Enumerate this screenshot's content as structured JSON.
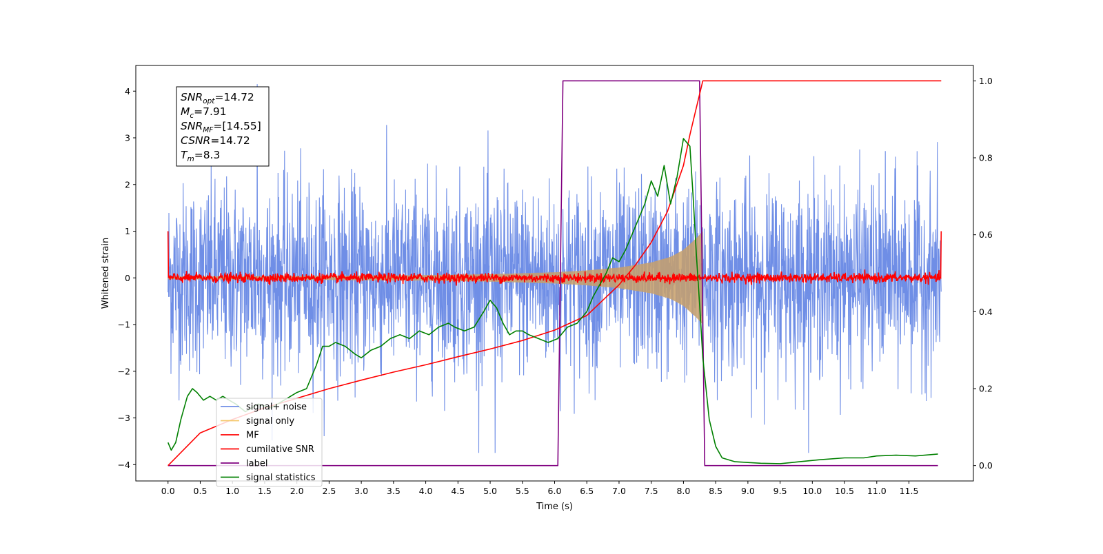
{
  "chart_data": {
    "type": "line",
    "xlabel": "Time (s)",
    "ylabel_left": "Whitened strain",
    "ylabel_right": "",
    "xlim": [
      -0.5,
      12.5
    ],
    "ylim_left": [
      -4.35,
      4.55
    ],
    "ylim_right": [
      -0.04,
      1.04
    ],
    "x_ticks": [
      0.0,
      0.5,
      1.0,
      1.5,
      2.0,
      2.5,
      3.0,
      3.5,
      4.0,
      4.5,
      5.0,
      5.5,
      6.0,
      6.5,
      7.0,
      7.5,
      8.0,
      8.5,
      9.0,
      9.5,
      10.0,
      10.5,
      11.0,
      11.5
    ],
    "x_tick_labels": [
      "0.0",
      "0.5",
      "1.0",
      "1.5",
      "2.0",
      "2.5",
      "3.0",
      "3.5",
      "4.0",
      "4.5",
      "5.0",
      "5.5",
      "6.0",
      "6.5",
      "7.0",
      "7.5",
      "8.0",
      "8.5",
      "9.0",
      "9.5",
      "10.0",
      "10.5",
      "11.0",
      "11.5"
    ],
    "y_ticks_left": [
      -4,
      -3,
      -2,
      -1,
      0,
      1,
      2,
      3,
      4
    ],
    "y_tick_labels_left": [
      "−4",
      "−3",
      "−2",
      "−1",
      "0",
      "1",
      "2",
      "3",
      "4"
    ],
    "y_ticks_right": [
      0.0,
      0.2,
      0.4,
      0.6,
      0.8,
      1.0
    ],
    "y_tick_labels_right": [
      "0.0",
      "0.2",
      "0.4",
      "0.6",
      "0.8",
      "1.0"
    ],
    "legend_position": "lower-left",
    "legend": [
      {
        "name": "signal+ noise",
        "color": "#6f8ee6"
      },
      {
        "name": "signal only",
        "color": "#f5c86a"
      },
      {
        "name": "MF",
        "color": "#ff0000"
      },
      {
        "name": "cumilative SNR",
        "color": "#ff0000"
      },
      {
        "name": "label",
        "color": "#800080"
      },
      {
        "name": "signal statistics",
        "color": "#008000"
      }
    ],
    "annotation": {
      "lines": [
        {
          "base": "SNR",
          "sub": "opt",
          "value": "=14.72"
        },
        {
          "base": "M",
          "sub": "c",
          "value": "=7.91"
        },
        {
          "base": "SNR",
          "sub": "MF",
          "value": "=[14.55]"
        },
        {
          "base": "CSNR",
          "sub": "",
          "value": "=14.72"
        },
        {
          "base": "T",
          "sub": "m",
          "value": "=8.3"
        }
      ]
    },
    "series": [
      {
        "name": "signal+ noise",
        "axis": "left",
        "color": "#6f8ee6",
        "x_range": [
          0.0,
          12.0
        ],
        "noise_sigma": 1.0,
        "peak_values": [
          4.15,
          -3.75
        ]
      },
      {
        "name": "signal only",
        "axis": "left",
        "color": "#c8a06a",
        "x_range": [
          0.0,
          8.3
        ],
        "envelope_x": [
          0.0,
          2.0,
          4.0,
          5.0,
          6.0,
          6.5,
          7.0,
          7.5,
          7.8,
          8.0,
          8.2,
          8.3
        ],
        "envelope_y": [
          0.03,
          0.04,
          0.06,
          0.08,
          0.12,
          0.16,
          0.22,
          0.33,
          0.45,
          0.6,
          0.85,
          1.0
        ]
      },
      {
        "name": "MF",
        "axis": "left",
        "color": "#ff0000",
        "x_range": [
          0.0,
          12.0
        ],
        "noise_sigma": 0.05,
        "edge_value": 1.0
      },
      {
        "name": "cumilative SNR",
        "axis": "right",
        "color": "#ff0000",
        "x": [
          0.0,
          0.5,
          1.0,
          1.5,
          2.0,
          2.5,
          3.0,
          3.5,
          4.0,
          4.5,
          5.0,
          5.5,
          6.0,
          6.5,
          7.0,
          7.25,
          7.5,
          7.75,
          8.0,
          8.1,
          8.2,
          8.3,
          12.0
        ],
        "y": [
          0.0,
          0.085,
          0.12,
          0.15,
          0.175,
          0.2,
          0.222,
          0.243,
          0.262,
          0.283,
          0.303,
          0.325,
          0.352,
          0.39,
          0.47,
          0.52,
          0.58,
          0.66,
          0.78,
          0.86,
          0.93,
          1.0,
          1.0
        ]
      },
      {
        "name": "label",
        "axis": "right",
        "color": "#800080",
        "x": [
          0.0,
          6.05,
          6.13,
          8.25,
          8.33,
          11.95
        ],
        "y": [
          0.0,
          0.0,
          1.0,
          1.0,
          0.0,
          0.0
        ]
      },
      {
        "name": "signal statistics",
        "axis": "right",
        "color": "#008000",
        "x": [
          0.0,
          0.05,
          0.12,
          0.2,
          0.3,
          0.38,
          0.45,
          0.55,
          0.65,
          0.75,
          0.85,
          0.95,
          1.05,
          1.2,
          1.4,
          1.6,
          1.8,
          2.0,
          2.15,
          2.3,
          2.4,
          2.5,
          2.6,
          2.75,
          2.9,
          3.0,
          3.15,
          3.3,
          3.45,
          3.6,
          3.75,
          3.9,
          4.05,
          4.2,
          4.35,
          4.45,
          4.6,
          4.75,
          4.9,
          5.0,
          5.1,
          5.2,
          5.3,
          5.4,
          5.5,
          5.6,
          5.75,
          5.9,
          6.05,
          6.2,
          6.35,
          6.5,
          6.6,
          6.7,
          6.8,
          6.9,
          7.0,
          7.1,
          7.2,
          7.3,
          7.4,
          7.5,
          7.6,
          7.7,
          7.8,
          7.9,
          8.0,
          8.1,
          8.15,
          8.2,
          8.25,
          8.3,
          8.4,
          8.5,
          8.6,
          8.8,
          9.0,
          9.2,
          9.5,
          9.8,
          10.1,
          10.5,
          10.8,
          11.0,
          11.3,
          11.6,
          11.95
        ],
        "y": [
          0.06,
          0.04,
          0.06,
          0.12,
          0.18,
          0.2,
          0.19,
          0.17,
          0.18,
          0.17,
          0.18,
          0.17,
          0.16,
          0.14,
          0.16,
          0.15,
          0.17,
          0.19,
          0.2,
          0.26,
          0.31,
          0.31,
          0.32,
          0.31,
          0.29,
          0.28,
          0.3,
          0.31,
          0.33,
          0.34,
          0.33,
          0.35,
          0.34,
          0.36,
          0.37,
          0.36,
          0.35,
          0.36,
          0.4,
          0.43,
          0.41,
          0.37,
          0.34,
          0.35,
          0.35,
          0.34,
          0.33,
          0.32,
          0.33,
          0.36,
          0.37,
          0.4,
          0.44,
          0.47,
          0.5,
          0.54,
          0.53,
          0.56,
          0.6,
          0.64,
          0.68,
          0.74,
          0.7,
          0.78,
          0.68,
          0.75,
          0.85,
          0.83,
          0.7,
          0.55,
          0.42,
          0.28,
          0.12,
          0.05,
          0.02,
          0.01,
          0.008,
          0.006,
          0.005,
          0.01,
          0.015,
          0.02,
          0.02,
          0.025,
          0.027,
          0.025,
          0.03
        ]
      }
    ]
  }
}
